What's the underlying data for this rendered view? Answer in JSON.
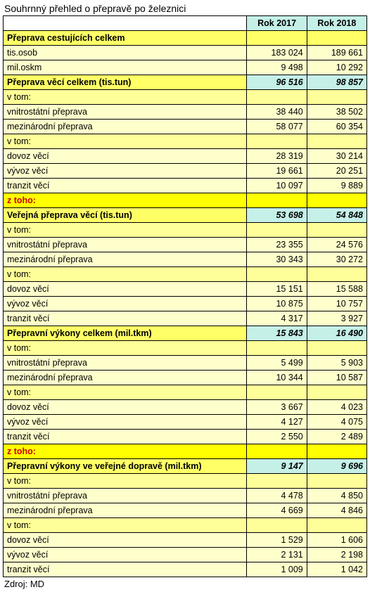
{
  "title": "Souhrnný přehled o přepravě po železnici",
  "columns": [
    "",
    "Rok 2017",
    "Rok 2018"
  ],
  "source": "Zdroj: MD",
  "colors": {
    "cyan": "#c5f0e8",
    "yellow_bold": "#ffff66",
    "yellow_light": "#ffffcc",
    "yellow_norm": "#ffff99",
    "yellow_bright": "#ffff00"
  },
  "rows": [
    {
      "t": "header",
      "c": [
        "",
        "Rok 2017",
        "Rok 2018"
      ],
      "bg": "cyan"
    },
    {
      "t": "section",
      "c": [
        "Přeprava cestujících celkem",
        "",
        ""
      ],
      "bg": "yellow_bold",
      "bold": true
    },
    {
      "t": "row",
      "c": [
        "tis.osob",
        "183 024",
        "189 661"
      ],
      "bg": "yellow_light"
    },
    {
      "t": "row",
      "c": [
        "mil.oskm",
        "9 498",
        "10 292"
      ],
      "bg": "yellow_light"
    },
    {
      "t": "bi",
      "c": [
        "Přeprava věcí celkem (tis.tun)",
        "96 516",
        "98 857"
      ],
      "bg0": "yellow_bold",
      "bg1": "cyan"
    },
    {
      "t": "row",
      "c": [
        "v tom:",
        "",
        ""
      ],
      "bg": "yellow_norm"
    },
    {
      "t": "row",
      "c": [
        "vnitrostátní přeprava",
        "38 440",
        "38 502"
      ],
      "bg": "yellow_light"
    },
    {
      "t": "row",
      "c": [
        "mezinárodní přeprava",
        "58 077",
        "60 354"
      ],
      "bg": "yellow_light"
    },
    {
      "t": "row",
      "c": [
        "v tom:",
        "",
        ""
      ],
      "bg": "yellow_norm"
    },
    {
      "t": "row",
      "c": [
        "dovoz věcí",
        "28 319",
        "30 214"
      ],
      "bg": "yellow_light"
    },
    {
      "t": "row",
      "c": [
        "vývoz věcí",
        "19 661",
        "20 251"
      ],
      "bg": "yellow_light"
    },
    {
      "t": "row",
      "c": [
        "tranzit věcí",
        "10 097",
        "9 889"
      ],
      "bg": "yellow_light"
    },
    {
      "t": "ztoho",
      "c": [
        "z toho:",
        "",
        ""
      ],
      "bg": "yellow_bright"
    },
    {
      "t": "bi",
      "c": [
        "Veřejná přeprava věcí (tis.tun)",
        "53 698",
        "54 848"
      ],
      "bg0": "yellow_bold",
      "bg1": "cyan"
    },
    {
      "t": "row",
      "c": [
        "v tom:",
        "",
        ""
      ],
      "bg": "yellow_norm"
    },
    {
      "t": "row",
      "c": [
        "vnitrostátní přeprava",
        "23 355",
        "24 576"
      ],
      "bg": "yellow_light"
    },
    {
      "t": "row",
      "c": [
        "mezinárodní přeprava",
        "30 343",
        "30 272"
      ],
      "bg": "yellow_light"
    },
    {
      "t": "row",
      "c": [
        "v tom:",
        "",
        ""
      ],
      "bg": "yellow_norm"
    },
    {
      "t": "row",
      "c": [
        "dovoz věcí",
        "15 151",
        "15 588"
      ],
      "bg": "yellow_light"
    },
    {
      "t": "row",
      "c": [
        "vývoz věcí",
        "10 875",
        "10 757"
      ],
      "bg": "yellow_light"
    },
    {
      "t": "row",
      "c": [
        "tranzit věcí",
        "4 317",
        "3 927"
      ],
      "bg": "yellow_light"
    },
    {
      "t": "bi",
      "c": [
        "Přepravní výkony celkem (mil.tkm)",
        "15 843",
        "16 490"
      ],
      "bg0": "yellow_bold",
      "bg1": "cyan"
    },
    {
      "t": "row",
      "c": [
        "v tom:",
        "",
        ""
      ],
      "bg": "yellow_norm"
    },
    {
      "t": "row",
      "c": [
        "vnitrostátní přeprava",
        "5 499",
        "5 903"
      ],
      "bg": "yellow_light"
    },
    {
      "t": "row",
      "c": [
        "mezinárodní přeprava",
        "10 344",
        "10 587"
      ],
      "bg": "yellow_light"
    },
    {
      "t": "row",
      "c": [
        "v tom:",
        "",
        ""
      ],
      "bg": "yellow_norm"
    },
    {
      "t": "row",
      "c": [
        "dovoz věcí",
        "3 667",
        "4 023"
      ],
      "bg": "yellow_light"
    },
    {
      "t": "row",
      "c": [
        "vývoz věcí",
        "4 127",
        "4 075"
      ],
      "bg": "yellow_light"
    },
    {
      "t": "row",
      "c": [
        "tranzit věcí",
        "2 550",
        "2 489"
      ],
      "bg": "yellow_light"
    },
    {
      "t": "ztoho",
      "c": [
        "z toho:",
        "",
        ""
      ],
      "bg": "yellow_bright"
    },
    {
      "t": "bi",
      "c": [
        "Přepravní výkony ve veřejné dopravě (mil.tkm)",
        "9 147",
        "9 696"
      ],
      "bg0": "yellow_bold",
      "bg1": "cyan"
    },
    {
      "t": "row",
      "c": [
        "v tom:",
        "",
        ""
      ],
      "bg": "yellow_norm"
    },
    {
      "t": "row",
      "c": [
        "vnitrostátní přeprava",
        "4 478",
        "4 850"
      ],
      "bg": "yellow_light"
    },
    {
      "t": "row",
      "c": [
        "mezinárodní přeprava",
        "4 669",
        "4 846"
      ],
      "bg": "yellow_light"
    },
    {
      "t": "row",
      "c": [
        "v tom:",
        "",
        ""
      ],
      "bg": "yellow_norm"
    },
    {
      "t": "row",
      "c": [
        "dovoz věcí",
        "1 529",
        "1 606"
      ],
      "bg": "yellow_light"
    },
    {
      "t": "row",
      "c": [
        "vývoz věcí",
        "2 131",
        "2 198"
      ],
      "bg": "yellow_light"
    },
    {
      "t": "row",
      "c": [
        "tranzit věcí",
        "1 009",
        "1 042"
      ],
      "bg": "yellow_light"
    }
  ]
}
